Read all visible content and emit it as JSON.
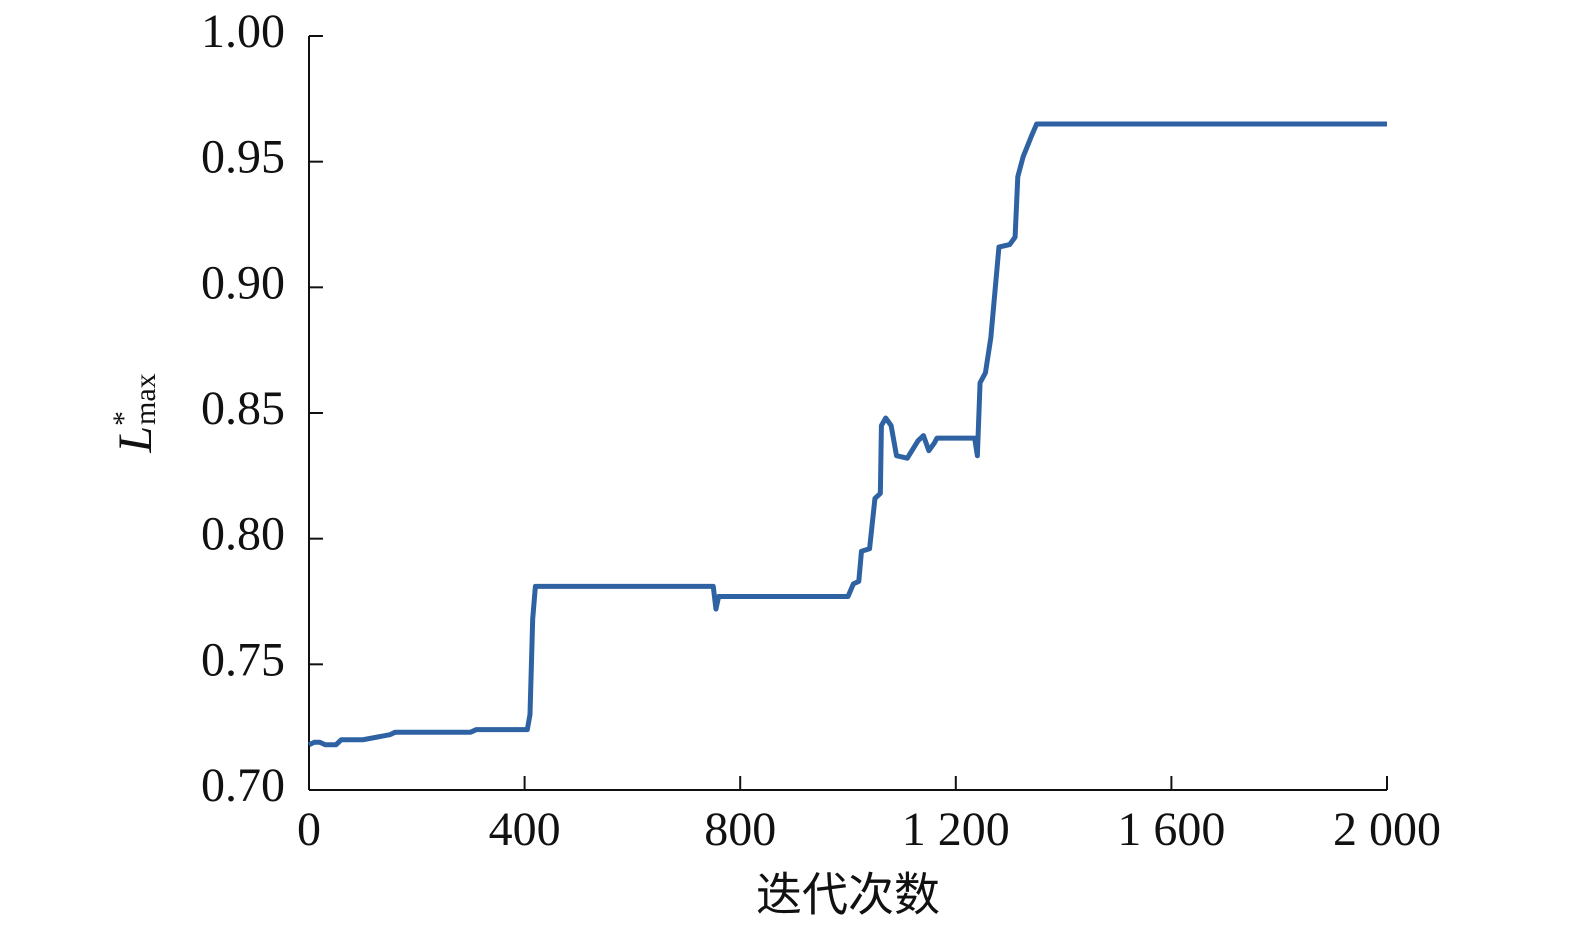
{
  "chart_data": {
    "type": "line",
    "xlabel": "迭代次数",
    "ylabel": {
      "main": "L",
      "sup": "*",
      "sub": "max"
    },
    "x": [
      0,
      10,
      20,
      30,
      50,
      60,
      100,
      150,
      160,
      300,
      310,
      405,
      410,
      415,
      420,
      750,
      755,
      760,
      1000,
      1010,
      1020,
      1025,
      1040,
      1050,
      1060,
      1062,
      1070,
      1080,
      1090,
      1110,
      1130,
      1140,
      1150,
      1160,
      1165,
      1235,
      1240,
      1245,
      1255,
      1265,
      1280,
      1300,
      1310,
      1315,
      1325,
      1340,
      1350,
      2000
    ],
    "series": [
      {
        "color": "#2f62a3",
        "values": [
          0.718,
          0.719,
          0.719,
          0.718,
          0.718,
          0.72,
          0.72,
          0.722,
          0.723,
          0.723,
          0.724,
          0.724,
          0.73,
          0.768,
          0.781,
          0.781,
          0.772,
          0.777,
          0.777,
          0.782,
          0.783,
          0.795,
          0.796,
          0.816,
          0.818,
          0.845,
          0.848,
          0.845,
          0.833,
          0.832,
          0.839,
          0.841,
          0.835,
          0.838,
          0.84,
          0.84,
          0.833,
          0.862,
          0.866,
          0.88,
          0.916,
          0.917,
          0.92,
          0.944,
          0.952,
          0.96,
          0.965,
          0.965
        ]
      }
    ],
    "xlim": [
      0,
      2000
    ],
    "xticks": [
      0,
      400,
      800,
      {
        "value": 1200,
        "label": "1 200"
      },
      {
        "value": 1600,
        "label": "1 600"
      },
      {
        "value": 2000,
        "label": "2 000"
      }
    ],
    "ylim": [
      0.7,
      1.0
    ],
    "yticks": [
      {
        "value": 0.7,
        "label": "0.70"
      },
      0.75,
      {
        "value": 0.8,
        "label": "0.80"
      },
      0.85,
      {
        "value": 0.9,
        "label": "0.90"
      },
      0.95,
      {
        "value": 1.0,
        "label": "1.00"
      }
    ],
    "grid": false
  }
}
